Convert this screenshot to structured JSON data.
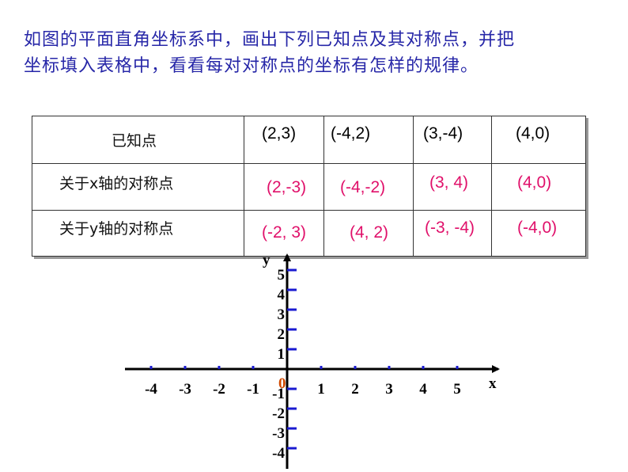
{
  "prompt": {
    "line1": "如图的平面直角坐标系中，画出下列已知点及其对称点，并把",
    "line2": "坐标填入表格中，看看每对对称点的坐标有怎样的规律。"
  },
  "table": {
    "header_label": "已知点",
    "row_x_label": "关于x轴的对称点",
    "row_y_label": "关于y轴的对称点",
    "known": [
      "(2,3)",
      "(-4,2)",
      "(3,-4)",
      "(4,0)"
    ],
    "x_sym": [
      "(2,-3)",
      "(-4,-2)",
      "(3, 4)",
      "(4,0)"
    ],
    "y_sym": [
      "(-2, 3)",
      "(4, 2)",
      "(-3, -4)",
      "(-4,0)"
    ]
  },
  "axes": {
    "x_axis_label": "x",
    "y_axis_label": "y",
    "origin_label": "0",
    "x_tick_labels": [
      "-4",
      "-3",
      "-2",
      "-1",
      "1",
      "2",
      "3",
      "4",
      "5"
    ],
    "y_tick_labels": [
      "5",
      "4",
      "3",
      "2",
      "1",
      "-1",
      "-2",
      "-3",
      "-4"
    ],
    "tick_color": "#1a1ad0",
    "axis_color": "#000000"
  },
  "colors": {
    "prompt": "#2727a8",
    "answer": "#e0106a",
    "origin": "#d24a00"
  }
}
